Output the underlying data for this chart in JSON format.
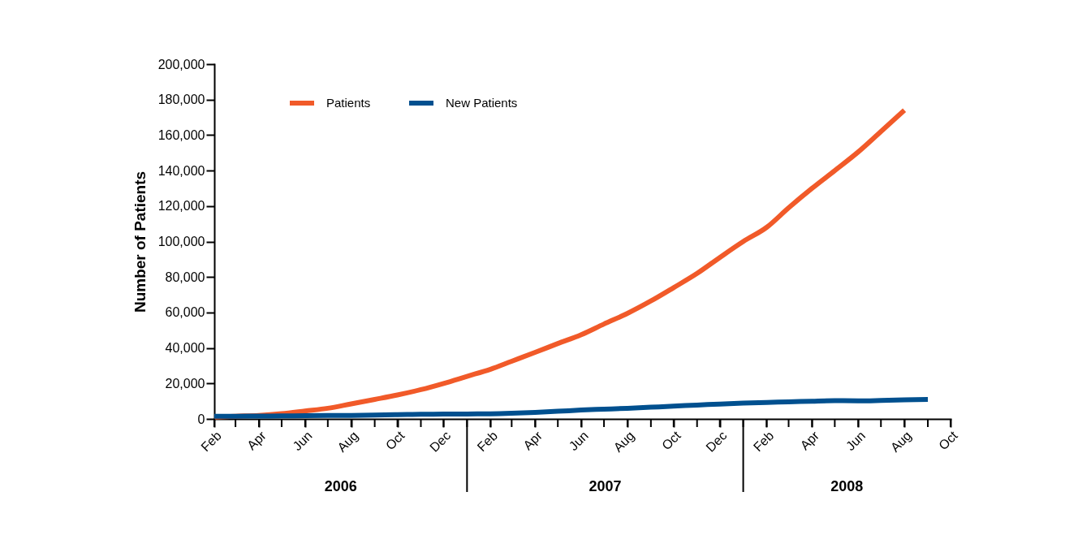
{
  "chart_data": {
    "type": "line",
    "ylabel": "Number of Patients",
    "x": [
      "2006-02",
      "2006-03",
      "2006-04",
      "2006-05",
      "2006-06",
      "2006-07",
      "2006-08",
      "2006-09",
      "2006-10",
      "2006-11",
      "2006-12",
      "2007-01",
      "2007-02",
      "2007-03",
      "2007-04",
      "2007-05",
      "2007-06",
      "2007-07",
      "2007-08",
      "2007-09",
      "2007-10",
      "2007-11",
      "2007-12",
      "2008-01",
      "2008-02",
      "2008-03",
      "2008-04",
      "2008-05",
      "2008-06",
      "2008-07",
      "2008-08",
      "2008-09"
    ],
    "series": [
      {
        "name": "Patients",
        "color": "#f15a29",
        "values": [
          1000,
          1500,
          2000,
          3000,
          4500,
          6000,
          8500,
          11000,
          13500,
          16500,
          20000,
          24000,
          28000,
          32500,
          37500,
          42500,
          47500,
          53500,
          59500,
          66500,
          74000,
          82000,
          91000,
          100000,
          108000,
          119000,
          130000,
          140000,
          150500,
          162000,
          174000,
          null
        ]
      },
      {
        "name": "New Patients",
        "color": "#00508f",
        "values": [
          1500,
          1500,
          1600,
          1700,
          1800,
          1900,
          2000,
          2200,
          2400,
          2600,
          2700,
          2800,
          2900,
          3200,
          3700,
          4300,
          5000,
          5500,
          6000,
          6600,
          7200,
          7800,
          8400,
          8900,
          9300,
          9600,
          10000,
          10300,
          10200,
          10400,
          10700,
          11000
        ]
      }
    ],
    "xlim": [
      "2006-02",
      "2008-10"
    ],
    "xticks": [
      {
        "value": "2006-02",
        "label": "Feb"
      },
      {
        "value": "2006-03",
        "label": null
      },
      {
        "value": "2006-04",
        "label": "Apr"
      },
      {
        "value": "2006-05",
        "label": null
      },
      {
        "value": "2006-06",
        "label": "Jun"
      },
      {
        "value": "2006-07",
        "label": null
      },
      {
        "value": "2006-08",
        "label": "Aug"
      },
      {
        "value": "2006-09",
        "label": null
      },
      {
        "value": "2006-10",
        "label": "Oct"
      },
      {
        "value": "2006-11",
        "label": null
      },
      {
        "value": "2006-12",
        "label": "Dec"
      },
      {
        "value": "2007-01",
        "label": null
      },
      {
        "value": "2007-02",
        "label": "Feb"
      },
      {
        "value": "2007-03",
        "label": null
      },
      {
        "value": "2007-04",
        "label": "Apr"
      },
      {
        "value": "2007-05",
        "label": null
      },
      {
        "value": "2007-06",
        "label": "Jun"
      },
      {
        "value": "2007-07",
        "label": null
      },
      {
        "value": "2007-08",
        "label": "Aug"
      },
      {
        "value": "2007-09",
        "label": null
      },
      {
        "value": "2007-10",
        "label": "Oct"
      },
      {
        "value": "2007-11",
        "label": null
      },
      {
        "value": "2007-12",
        "label": "Dec"
      },
      {
        "value": "2008-01",
        "label": null
      },
      {
        "value": "2008-02",
        "label": "Feb"
      },
      {
        "value": "2008-03",
        "label": null
      },
      {
        "value": "2008-04",
        "label": "Apr"
      },
      {
        "value": "2008-05",
        "label": null
      },
      {
        "value": "2008-06",
        "label": "Jun"
      },
      {
        "value": "2008-07",
        "label": null
      },
      {
        "value": "2008-08",
        "label": "Aug"
      },
      {
        "value": "2008-09",
        "label": null
      },
      {
        "value": "2008-10",
        "label": "Oct"
      }
    ],
    "ylim": [
      0,
      200000
    ],
    "yticks": [
      0,
      {
        "value": 20000,
        "label": "20,000"
      },
      {
        "value": 40000,
        "label": "40,000"
      },
      {
        "value": 60000,
        "label": "60,000"
      },
      {
        "value": 80000,
        "label": "80,000"
      },
      {
        "value": 100000,
        "label": "100,000"
      },
      {
        "value": 120000,
        "label": "120,000"
      },
      {
        "value": 140000,
        "label": "140,000"
      },
      {
        "value": 160000,
        "label": "160,000"
      },
      {
        "value": 180000,
        "label": "180,000"
      },
      {
        "value": 200000,
        "label": "200,000"
      }
    ],
    "annotations": [
      "2006",
      "2007",
      "2008"
    ],
    "grid": false,
    "legend": "top left"
  }
}
